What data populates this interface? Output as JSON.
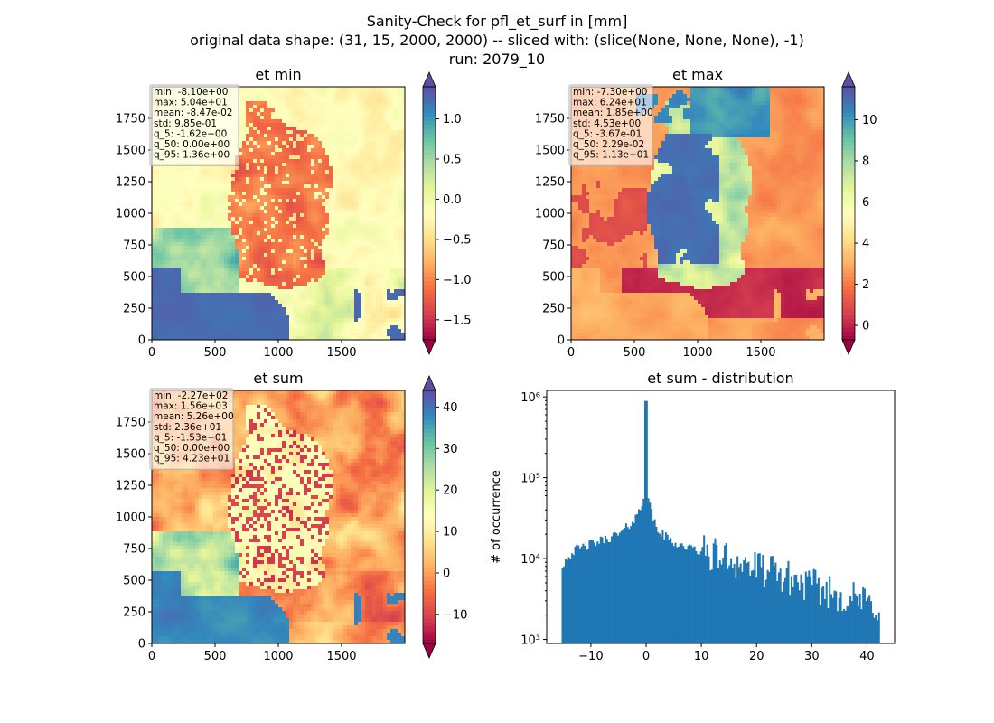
{
  "figure": {
    "title_lines": [
      "Sanity-Check for pfl_et_surf in [mm]",
      "original data shape: (31, 15, 2000, 2000) -- sliced with: (slice(None, None, None), -1)",
      "run: 2079_10"
    ]
  },
  "colormap": {
    "name": "Spectral",
    "stops": [
      "#9e0142",
      "#d53e4f",
      "#f46d43",
      "#fdae61",
      "#fee08b",
      "#ffffbf",
      "#e6f598",
      "#abdda4",
      "#66c2a5",
      "#3288bd",
      "#5e4fa2"
    ]
  },
  "chart_data": [
    {
      "id": "et-min",
      "type": "heatmap",
      "title": "et min",
      "xlim": [
        0,
        2000
      ],
      "ylim": [
        0,
        2000
      ],
      "xticks": [
        0,
        500,
        1000,
        1500
      ],
      "yticks": [
        0,
        250,
        500,
        750,
        1000,
        1250,
        1500,
        1750
      ],
      "colorbar": {
        "vmin": -1.75,
        "vmax": 1.4,
        "ticks": [
          -1.5,
          -1.0,
          -0.5,
          0.0,
          0.5,
          1.0
        ],
        "tick_labels": [
          "−1.5",
          "−1.0",
          "−0.5",
          "0.0",
          "0.5",
          "1.0"
        ]
      },
      "stats": [
        "min: -8.10e+00",
        "max: 5.04e+01",
        "mean: -8.47e-02",
        "std: 9.85e-01",
        "q_5: -1.62e+00",
        "q_50: 0.00e+00",
        "q_95: 1.36e+00"
      ]
    },
    {
      "id": "et-max",
      "type": "heatmap",
      "title": "et max",
      "xlim": [
        0,
        2000
      ],
      "ylim": [
        0,
        2000
      ],
      "xticks": [
        0,
        500,
        1000,
        1500
      ],
      "yticks": [
        0,
        250,
        500,
        750,
        1000,
        1250,
        1500,
        1750
      ],
      "colorbar": {
        "vmin": -0.7,
        "vmax": 11.6,
        "ticks": [
          0,
          2,
          4,
          6,
          8,
          10
        ],
        "tick_labels": [
          "0",
          "2",
          "4",
          "6",
          "8",
          "10"
        ]
      },
      "stats": [
        "min: -7.30e+00",
        "max: 6.24e+01",
        "mean: 1.85e+00",
        "std: 4.53e+00",
        "q_5: -3.67e-01",
        "q_50: 2.29e-02",
        "q_95: 1.13e+01"
      ]
    },
    {
      "id": "et-sum",
      "type": "heatmap",
      "title": "et sum",
      "xlim": [
        0,
        2000
      ],
      "ylim": [
        0,
        2000
      ],
      "xticks": [
        0,
        500,
        1000,
        1500
      ],
      "yticks": [
        0,
        250,
        500,
        750,
        1000,
        1250,
        1500,
        1750
      ],
      "colorbar": {
        "vmin": -17,
        "vmax": 44,
        "ticks": [
          -10,
          0,
          10,
          20,
          30,
          40
        ],
        "tick_labels": [
          "−10",
          "0",
          "10",
          "20",
          "30",
          "40"
        ]
      },
      "stats": [
        "min: -2.27e+02",
        "max: 1.56e+03",
        "mean: 5.26e+00",
        "std: 2.36e+01",
        "q_5: -1.53e+01",
        "q_50: 0.00e+00",
        "q_95: 4.23e+01"
      ]
    },
    {
      "id": "et-sum-distribution",
      "type": "bar",
      "title": "et sum - distribution",
      "ylabel": "# of occurrence",
      "yscale": "log",
      "xlim": [
        -18,
        45
      ],
      "ylim_log10": [
        2.95,
        6.08
      ],
      "xticks": [
        -10,
        0,
        10,
        20,
        30,
        40
      ],
      "xtick_labels": [
        "−10",
        "0",
        "10",
        "20",
        "30",
        "40"
      ],
      "yticks_log10": [
        3,
        4,
        5,
        6
      ],
      "ytick_labels": [
        "10³",
        "10⁴",
        "10⁵",
        "10⁶"
      ],
      "bar_color": "#1f77b4",
      "bin_start": -15.3,
      "bin_end": 42.3,
      "bin_count": 200,
      "profile": {
        "x": [
          -15.3,
          -14.5,
          -13,
          -11,
          -9,
          -7,
          -5,
          -4,
          -3,
          -2,
          -1.5,
          -1,
          -0.5,
          -0.15,
          0.15,
          0.5,
          1,
          1.5,
          2,
          3,
          4,
          5,
          7,
          10,
          15,
          20,
          25,
          30,
          35,
          40,
          42.3
        ],
        "count_log10": [
          3.9,
          4.0,
          4.1,
          4.15,
          4.2,
          4.25,
          4.3,
          4.35,
          4.42,
          4.5,
          4.55,
          4.62,
          4.75,
          4.95,
          4.92,
          4.7,
          4.55,
          4.45,
          4.35,
          4.3,
          4.25,
          4.2,
          4.15,
          4.08,
          4.0,
          3.88,
          3.78,
          3.66,
          3.55,
          3.45,
          3.4
        ]
      },
      "peak": {
        "x": 0,
        "count_log10": 5.95
      }
    }
  ]
}
